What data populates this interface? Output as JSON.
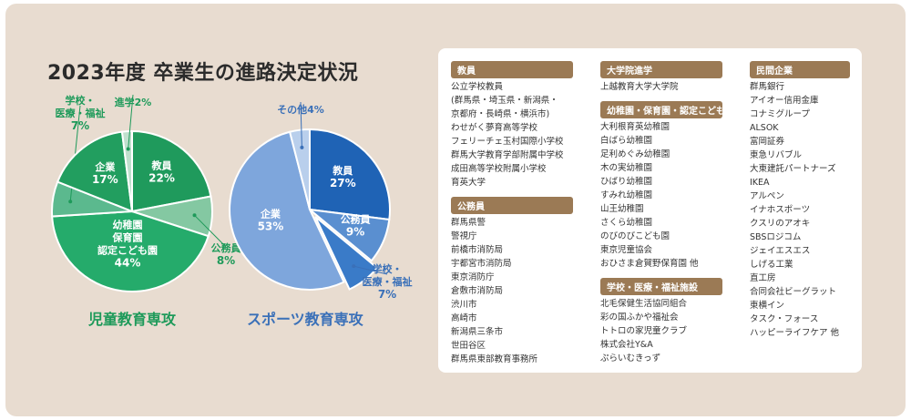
{
  "title": "2023年度 卒業生の進路決定状況",
  "colors": {
    "background": "#e8dcd0",
    "green_dark": "#1e9a5a",
    "blue_dark": "#1f63b5",
    "header_brown": "#9b7a55"
  },
  "chart_data": [
    {
      "type": "pie",
      "title": "児童教育専攻",
      "slices": [
        {
          "label": "教員",
          "value": 22,
          "color": "#1f9a5c",
          "text_color": "#ffffff"
        },
        {
          "label": "公務員",
          "value": 8,
          "color": "#84c8a2",
          "text_color": "#1e9a5a"
        },
        {
          "label": "幼稚園\n保育園\n認定こども園",
          "value": 44,
          "color": "#25ab6b",
          "text_color": "#ffffff"
        },
        {
          "label": "学校・\n医療・福祉",
          "value": 7,
          "color": "#5bb98e",
          "text_color": "#1e9a5a"
        },
        {
          "label": "企業",
          "value": 17,
          "color": "#229e5f",
          "text_color": "#ffffff"
        },
        {
          "label": "進学",
          "value": 2,
          "color": "#bfe0cd",
          "text_color": "#1e9a5a"
        }
      ]
    },
    {
      "type": "pie",
      "title": "スポーツ教育専攻",
      "slices": [
        {
          "label": "教員",
          "value": 27,
          "color": "#1f63b5",
          "text_color": "#ffffff"
        },
        {
          "label": "公務員",
          "value": 9,
          "color": "#5a8fd0",
          "text_color": "#ffffff"
        },
        {
          "label": "学校・\n医療・福祉",
          "value": 7,
          "color": "#3a7bc8",
          "text_color": "#3a70b8"
        },
        {
          "label": "企業",
          "value": 53,
          "color": "#7ea6dc",
          "text_color": "#ffffff"
        },
        {
          "label": "その他",
          "value": 4,
          "color": "#b9cfec",
          "text_color": "#3a70b8"
        }
      ]
    }
  ],
  "lists": {
    "col1": [
      {
        "header": "教員",
        "items": [
          "公立学校教員",
          "(群馬県・埼玉県・新潟県・",
          "京都府・長崎県・横浜市)",
          "わせがく夢育高等学校",
          "フェリーチェ玉村国際小学校",
          "群馬大学教育学部附属中学校",
          "成田高等学校附属小学校",
          "育英大学"
        ]
      },
      {
        "header": "公務員",
        "items": [
          "群馬県警",
          "警視庁",
          "前橋市消防局",
          "宇都宮市消防局",
          "東京消防庁",
          "倉敷市消防局",
          "渋川市",
          "高崎市",
          "新潟県三条市",
          "世田谷区",
          "群馬県東部教育事務所"
        ]
      }
    ],
    "col2": [
      {
        "header": "大学院進学",
        "items": [
          "上越教育大学大学院"
        ]
      },
      {
        "header": "幼稚園・保育園・認定こども園",
        "items": [
          "大利根育英幼稚園",
          "白ばら幼稚園",
          "足利めぐみ幼稚園",
          "木の実幼稚園",
          "ひばり幼稚園",
          "すみれ幼稚園",
          "山王幼稚園",
          "さくら幼稚園",
          "のびのびこども園",
          "東京児童協会",
          "おひさま倉賀野保育園 他"
        ]
      },
      {
        "header": "学校・医療・福祉施設",
        "items": [
          "北毛保健生活協同組合",
          "彩の国ふかや福祉会",
          "トトロの家児童クラブ",
          "株式会社Y&A",
          "ぷらいむきっず"
        ]
      }
    ],
    "col3": [
      {
        "header": "民間企業",
        "items": [
          "群馬銀行",
          "アイオー信用金庫",
          "コナミグループ",
          "ALSOK",
          "富岡証券",
          "東急リバブル",
          "大東建託パートナーズ",
          "IKEA",
          "アルペン",
          "イナホスポーツ",
          "クスリのアオキ",
          "SBSロジコム",
          "ジェイエスエス",
          "しげる工業",
          "直工房",
          "合同会社ビーグラット",
          "東横イン",
          "タスク・フォース",
          "ハッピーライフケア 他"
        ]
      }
    ]
  }
}
